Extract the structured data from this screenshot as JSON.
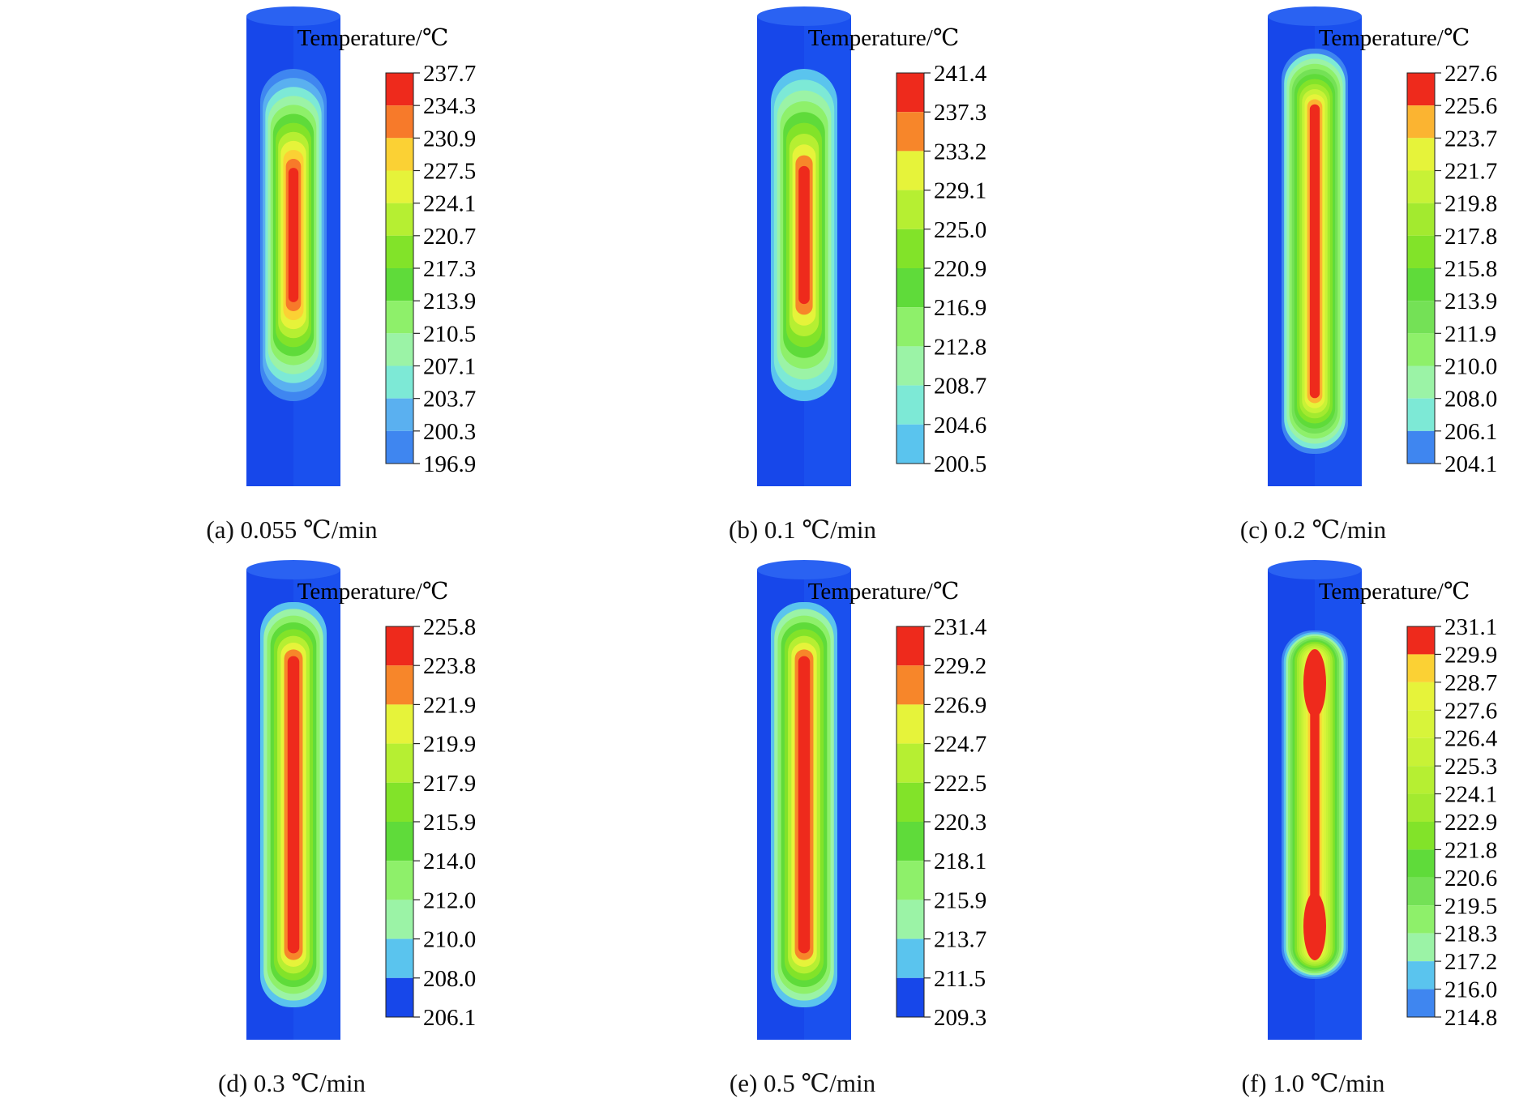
{
  "legend_title": "Temperature/℃",
  "panels": [
    {
      "caption": "(a) 0.055 ℃/min",
      "ticks": [
        "237.7",
        "234.3",
        "230.9",
        "227.5",
        "224.1",
        "220.7",
        "217.3",
        "213.9",
        "210.5",
        "207.1",
        "203.7",
        "200.3",
        "196.9"
      ],
      "colors": [
        "#ee2a1c",
        "#f77a2a",
        "#fbd134",
        "#e6f33a",
        "#b6ef32",
        "#82e329",
        "#5fdb3a",
        "#8ef06a",
        "#9bf3a6",
        "#7de9d6",
        "#5ab0f0",
        "#3f86f0",
        "#1747ea"
      ],
      "pattern": "ellipse"
    },
    {
      "caption": "(b) 0.1 ℃/min",
      "ticks": [
        "241.4",
        "237.3",
        "233.2",
        "229.1",
        "225.0",
        "220.9",
        "216.9",
        "212.8",
        "208.7",
        "204.6",
        "200.5"
      ],
      "colors": [
        "#ee2a1c",
        "#f7862a",
        "#e6f33a",
        "#b6ef32",
        "#82e329",
        "#5fdb3a",
        "#8ef06a",
        "#9bf3a6",
        "#7de9d6",
        "#5ac4ee",
        "#1747ea"
      ],
      "pattern": "ellipse"
    },
    {
      "caption": "(c) 0.2 ℃/min",
      "ticks": [
        "227.6",
        "225.6",
        "223.7",
        "221.7",
        "219.8",
        "217.8",
        "215.8",
        "213.9",
        "211.9",
        "210.0",
        "208.0",
        "206.1",
        "204.1"
      ],
      "colors": [
        "#ee2a1c",
        "#fbb431",
        "#e6f33a",
        "#c8f236",
        "#a3ea2f",
        "#82e329",
        "#5fdb3a",
        "#74e156",
        "#8ef06a",
        "#9bf3a6",
        "#7de9d6",
        "#3f86f0",
        "#1747ea"
      ],
      "pattern": "long"
    },
    {
      "caption": "(d) 0.3 ℃/min",
      "ticks": [
        "225.8",
        "223.8",
        "221.9",
        "219.9",
        "217.9",
        "215.9",
        "214.0",
        "212.0",
        "210.0",
        "208.0",
        "206.1"
      ],
      "colors": [
        "#ee2a1c",
        "#f7862a",
        "#e6f33a",
        "#b6ef32",
        "#82e329",
        "#5fdb3a",
        "#8ef06a",
        "#9bf3a6",
        "#5ac4ee",
        "#1747ea"
      ],
      "pattern": "long"
    },
    {
      "caption": "(e) 0.5 ℃/min",
      "ticks": [
        "231.4",
        "229.2",
        "226.9",
        "224.7",
        "222.5",
        "220.3",
        "218.1",
        "215.9",
        "213.7",
        "211.5",
        "209.3"
      ],
      "colors": [
        "#ee2a1c",
        "#f7862a",
        "#e6f33a",
        "#b6ef32",
        "#82e329",
        "#5fdb3a",
        "#8ef06a",
        "#9bf3a6",
        "#5ac4ee",
        "#1747ea"
      ],
      "pattern": "long"
    },
    {
      "caption": "(f) 1.0 ℃/min",
      "ticks": [
        "231.1",
        "229.9",
        "228.7",
        "227.6",
        "226.4",
        "225.3",
        "224.1",
        "222.9",
        "221.8",
        "220.6",
        "219.5",
        "218.3",
        "217.2",
        "216.0",
        "214.8"
      ],
      "colors": [
        "#ee2a1c",
        "#fbd134",
        "#e6f33a",
        "#d8f43a",
        "#c8f236",
        "#b6ef32",
        "#a3ea2f",
        "#82e329",
        "#5fdb3a",
        "#74e156",
        "#8ef06a",
        "#9bf3a6",
        "#5ac4ee",
        "#3f86f0",
        "#1747ea"
      ],
      "pattern": "two-lobe"
    }
  ]
}
